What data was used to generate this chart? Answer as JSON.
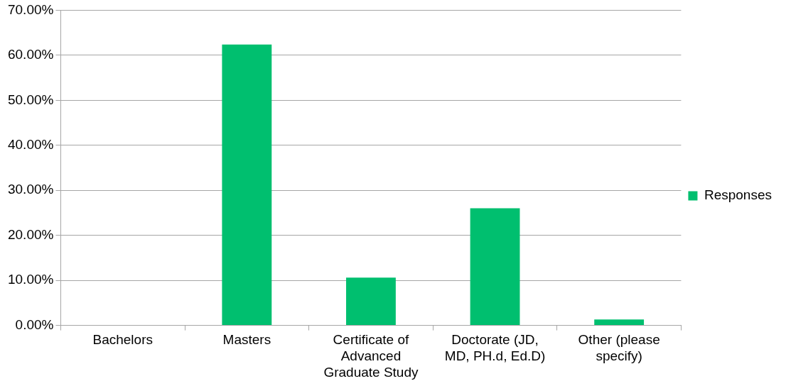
{
  "chart_data": {
    "type": "bar",
    "categories": [
      "Bachelors",
      "Masters",
      "Certificate of Advanced Graduate Study",
      "Doctorate (JD, MD, PH.d, Ed.D)",
      "Other (please specify)"
    ],
    "series": [
      {
        "name": "Responses",
        "color": "#00bf6f",
        "values": [
          0,
          62.4,
          10.6,
          26.0,
          1.3
        ]
      }
    ],
    "ylim": [
      0,
      70
    ],
    "yticks": [
      {
        "value": 0,
        "label": "0.00%"
      },
      {
        "value": 10,
        "label": "10.00%"
      },
      {
        "value": 20,
        "label": "20.00%"
      },
      {
        "value": 30,
        "label": "30.00%"
      },
      {
        "value": 40,
        "label": "40.00%"
      },
      {
        "value": 50,
        "label": "50.00%"
      },
      {
        "value": 60,
        "label": "60.00%"
      },
      {
        "value": 70,
        "label": "70.00%"
      }
    ],
    "grid": "y",
    "legend": "right"
  }
}
